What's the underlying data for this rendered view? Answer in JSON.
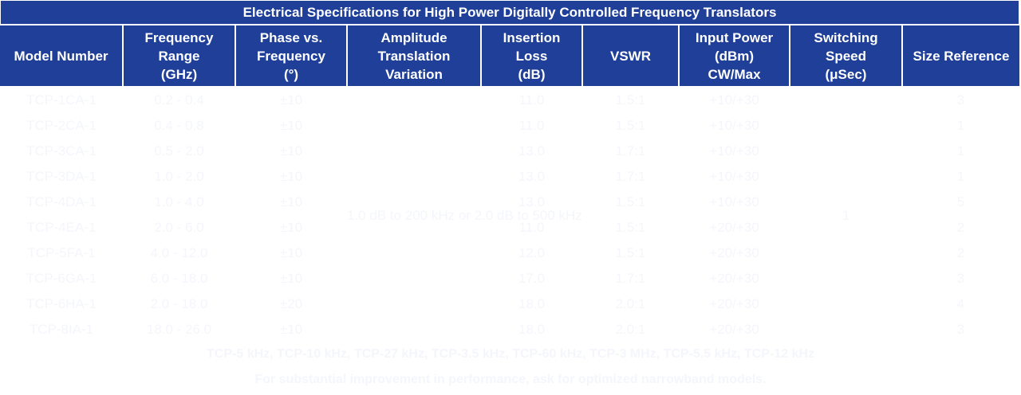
{
  "table": {
    "title": "Electrical Specifications for High Power Digitally Controlled Frequency Translators",
    "headers": [
      "Model Number",
      "Frequency\nRange\n(GHz)",
      "Phase vs.\nFrequency\n(°)",
      "Amplitude\nTranslation\nVariation",
      "Insertion\nLoss\n(dB)",
      "VSWR",
      "Input Power\n(dBm)\nCW/Max",
      "Switching\nSpeed\n(μSec)",
      "Size Reference"
    ],
    "rows": [
      {
        "model": "TCP-1CA-1",
        "freq": "0.2 - 0.4",
        "phase": "±10",
        "loss": "11.0",
        "vswr": "1.5:1",
        "power": "+10/+30",
        "size": "3"
      },
      {
        "model": "TCP-2CA-1",
        "freq": "0.4 - 0.8",
        "phase": "±10",
        "loss": "11.0",
        "vswr": "1.5:1",
        "power": "+10/+30",
        "size": "1"
      },
      {
        "model": "TCP-3CA-1",
        "freq": "0.5 - 2.0",
        "phase": "±10",
        "loss": "13.0",
        "vswr": "1.7:1",
        "power": "+10/+30",
        "size": "1"
      },
      {
        "model": "TCP-3DA-1",
        "freq": "1.0 - 2.0",
        "phase": "±10",
        "loss": "13.0",
        "vswr": "1.7:1",
        "power": "+10/+30",
        "size": "1"
      },
      {
        "model": "TCP-4DA-1",
        "freq": "1.0 - 4.0",
        "phase": "±10",
        "loss": "13.0",
        "vswr": "1.5:1",
        "power": "+10/+30",
        "size": "5"
      },
      {
        "model": "TCP-4EA-1",
        "freq": "2.0 - 6.0",
        "phase": "±10",
        "loss": "11.0",
        "vswr": "1.5:1",
        "power": "+20/+30",
        "size": "2"
      },
      {
        "model": "TCP-5FA-1",
        "freq": "4.0 - 12.0",
        "phase": "±10",
        "loss": "12.0",
        "vswr": "1.5:1",
        "power": "+20/+30",
        "size": "2"
      },
      {
        "model": "TCP-6GA-1",
        "freq": "6.0 - 18.0",
        "phase": "±10",
        "loss": "17.0",
        "vswr": "1.7:1",
        "power": "+20/+30",
        "size": "3"
      },
      {
        "model": "TCP-6HA-1",
        "freq": "2.0 - 18.0",
        "phase": "±20",
        "loss": "18.0",
        "vswr": "2.0:1",
        "power": "+20/+30",
        "size": "4"
      },
      {
        "model": "TCP-8IA-1",
        "freq": "18.0 - 26.0",
        "phase": "±10",
        "loss": "18.0",
        "vswr": "2.0:1",
        "power": "+20/+30",
        "size": "3"
      }
    ],
    "amplitude_variation": "1.0 dB to 200 kHz\nor\n2.0 dB to 500 kHz",
    "switching_speed": "1"
  },
  "notes": {
    "line1": "TCP-5 kHz, TCP-10 kHz, TCP-27 kHz, TCP-3.5 kHz, TCP-60 kHz, TCP-3 MHz, TCP-5.5 kHz, TCP-12 kHz",
    "line2": "For substantial improvement in performance, ask for optimized narrowband models."
  },
  "colors": {
    "header_bg": "#1f3f99",
    "header_text": "#ffffff",
    "body_text": "#f4f6fb"
  }
}
